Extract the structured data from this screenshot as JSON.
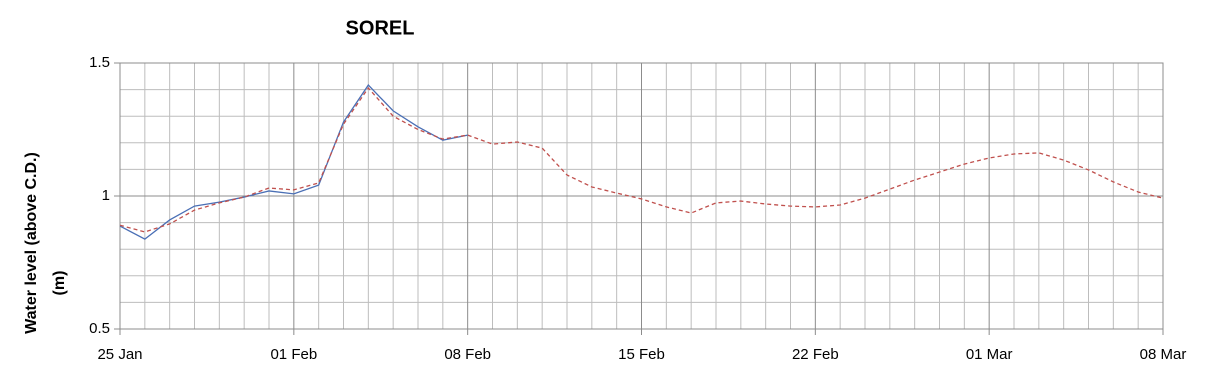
{
  "chart_data": {
    "type": "line",
    "title": "SOREL",
    "y_label": [
      "Water level (above C.D.)",
      "(m)"
    ],
    "categories": [
      "25 Jan",
      null,
      null,
      null,
      null,
      null,
      null,
      "01 Feb",
      null,
      null,
      null,
      null,
      null,
      null,
      "08 Feb",
      null,
      null,
      null,
      null,
      null,
      null,
      "15 Feb",
      null,
      null,
      null,
      null,
      null,
      null,
      "22 Feb",
      null,
      null,
      null,
      null,
      null,
      null,
      "01 Mar",
      null,
      null,
      null,
      null,
      null,
      null,
      "08 Mar"
    ],
    "series": [
      {
        "color": "#4a6fb5",
        "dash": false,
        "values": [
          0.887,
          0.838,
          0.91,
          0.962,
          0.977,
          0.996,
          1.019,
          1.008,
          1.041,
          1.278,
          1.417,
          1.32,
          1.26,
          1.21,
          1.229,
          null,
          null,
          null,
          null,
          null,
          null,
          null,
          null,
          null,
          null,
          null,
          null,
          null,
          null,
          null,
          null,
          null,
          null,
          null,
          null,
          null,
          null,
          null,
          null,
          null,
          null,
          null,
          null
        ]
      },
      {
        "color": "#c0504d",
        "dash": true,
        "values": [
          0.89,
          0.865,
          0.895,
          0.947,
          0.974,
          0.996,
          1.03,
          1.023,
          1.049,
          1.27,
          1.406,
          1.3,
          1.25,
          1.214,
          1.229,
          1.195,
          1.203,
          1.18,
          1.079,
          1.034,
          1.011,
          0.989,
          0.959,
          0.936,
          0.974,
          0.981,
          0.97,
          0.962,
          0.959,
          0.966,
          0.992,
          1.026,
          1.06,
          1.09,
          1.12,
          1.143,
          1.158,
          1.162,
          1.135,
          1.098,
          1.053,
          1.015,
          0.992
        ]
      }
    ],
    "ylim": [
      0.5,
      1.5
    ],
    "yticks": [
      0.5,
      1,
      1.5
    ],
    "minor_yticks": [
      0.6,
      0.7,
      0.8,
      0.9,
      1.1,
      1.2,
      1.3,
      1.4
    ],
    "grid": true
  }
}
